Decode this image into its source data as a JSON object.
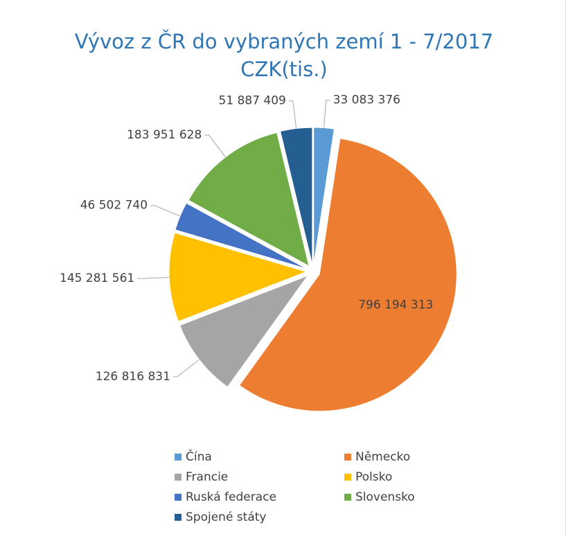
{
  "chart_data": {
    "type": "pie",
    "title": "Vývoz z ČR do vybraných zemí 1 - 7/2017 CZK(tis.)",
    "categories": [
      "Čína",
      "Německo",
      "Francie",
      "Polsko",
      "Ruská federace",
      "Slovensko",
      "Spojené státy"
    ],
    "values": [
      33083376,
      796194313,
      126816831,
      145281561,
      46502740,
      183951628,
      51887409
    ],
    "value_labels": [
      "33 083 376",
      "796 194 313",
      "126 816 831",
      "145 281 561",
      "46 502 740",
      "183 951 628",
      "51 887 409"
    ],
    "colors": [
      "#5b9bd5",
      "#ed7d31",
      "#a5a5a5",
      "#ffc000",
      "#4472c4",
      "#70ad47",
      "#255e91"
    ]
  }
}
